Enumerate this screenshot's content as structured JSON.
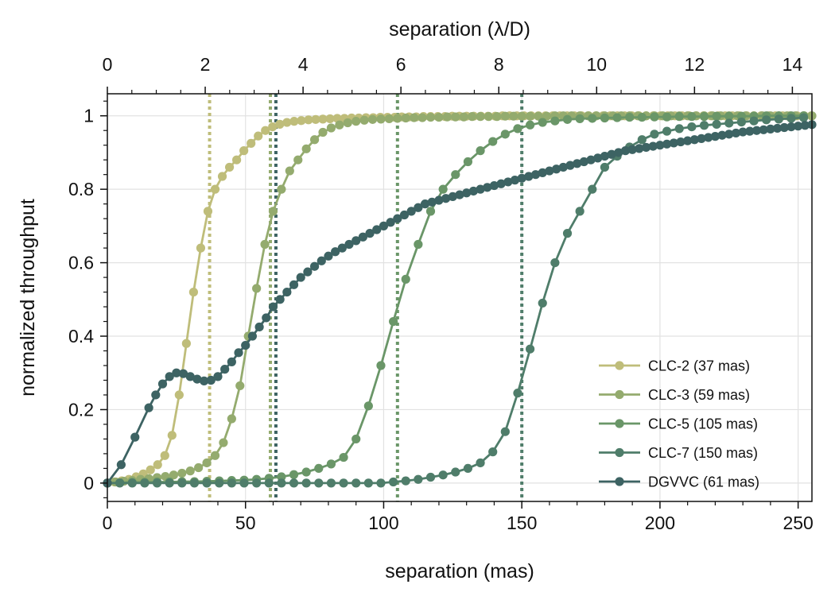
{
  "chart_data": {
    "type": "line",
    "xlabel": "separation (mas)",
    "ylabel": "normalized throughput",
    "top_xlabel": "separation (λ/D)",
    "xlim": [
      0,
      255
    ],
    "ylim": [
      -0.05,
      1.06
    ],
    "top_xlim": [
      0,
      14.4
    ],
    "x_ticks": [
      0,
      50,
      100,
      150,
      200,
      250
    ],
    "x_tick_labels": [
      "0",
      "50",
      "100",
      "150",
      "200",
      "250"
    ],
    "y_ticks": [
      0,
      0.2,
      0.4,
      0.6,
      0.8,
      1
    ],
    "y_tick_labels": [
      "0",
      "0.2",
      "0.4",
      "0.6",
      "0.8",
      "1"
    ],
    "top_x_ticks": [
      0,
      2,
      4,
      6,
      8,
      10,
      12,
      14
    ],
    "top_x_tick_labels": [
      "0",
      "2",
      "4",
      "6",
      "8",
      "10",
      "12",
      "14"
    ],
    "grid": true,
    "legend_position": "bottom-right",
    "series": [
      {
        "name": "CLC-2 (37 mas)",
        "color": "#bfbd7a",
        "iwa": 37
      },
      {
        "name": "CLC-3 (59 mas)",
        "color": "#94ab6e",
        "iwa": 59
      },
      {
        "name": "CLC-5 (105 mas)",
        "color": "#6a9668",
        "iwa": 105
      },
      {
        "name": "CLC-7 (150 mas)",
        "color": "#4f7d6a",
        "iwa": 150
      },
      {
        "name": "DGVVC (61 mas)",
        "color": "#3d6363",
        "iwa": 61
      }
    ],
    "curves": [
      {
        "x": [
          0,
          2.6,
          5.2,
          7.8,
          10.4,
          13,
          15.6,
          18.2,
          20.8,
          23.4,
          26,
          28.6,
          31.2,
          33.8,
          36.4,
          39,
          41.6,
          44.2,
          46.8,
          49.4,
          52,
          54.6,
          57.2,
          59.8,
          62.4,
          65,
          67.6,
          70.2,
          72.8,
          75.4,
          78,
          80.6,
          83.2,
          85.8,
          88.4,
          91,
          93.6,
          96.2,
          98.8,
          101.4,
          104,
          106.6,
          109.2,
          111.8,
          114.4,
          117,
          119.6,
          122.2,
          124.8,
          127.4,
          130,
          132.6,
          135.2,
          137.8,
          140.4,
          143,
          145.6,
          148.2,
          150.8,
          153.4,
          156,
          158.6,
          161.2,
          163.8,
          166.4,
          169,
          171.6,
          174.2,
          176.8,
          179.4,
          182,
          184.6,
          187.2,
          189.8,
          192.4,
          195,
          197.6,
          200.2,
          202.8,
          205.4,
          208,
          210.6,
          213.2,
          215.8,
          218.4,
          221,
          223.6,
          226.2,
          228.8,
          231.4,
          234,
          236.6,
          239.2,
          241.8,
          244.4,
          247,
          249.6,
          252.2,
          254.8
        ],
        "y": [
          0,
          0.003,
          0.006,
          0.01,
          0.017,
          0.025,
          0.036,
          0.05,
          0.075,
          0.13,
          0.24,
          0.38,
          0.52,
          0.64,
          0.74,
          0.8,
          0.835,
          0.86,
          0.88,
          0.905,
          0.925,
          0.945,
          0.96,
          0.97,
          0.977,
          0.982,
          0.985,
          0.987,
          0.989,
          0.99,
          0.991,
          0.992,
          0.993,
          0.993,
          0.994,
          0.994,
          0.995,
          0.995,
          0.996,
          0.996,
          0.996,
          0.997,
          0.997,
          0.997,
          0.998,
          0.998,
          0.998,
          0.998,
          0.999,
          0.999,
          0.999,
          0.999,
          0.999,
          0.999,
          0.999,
          1,
          1,
          1,
          1,
          1,
          1,
          1,
          1,
          1,
          1,
          1,
          1,
          1,
          1,
          1,
          1,
          1,
          1,
          1,
          1,
          1,
          1,
          1,
          1,
          1,
          1,
          1,
          1,
          1,
          1,
          1,
          1,
          1,
          1,
          1,
          1,
          1,
          1,
          1,
          1,
          1,
          1,
          1,
          1
        ]
      },
      {
        "x": [
          0,
          3,
          6,
          9,
          12,
          15,
          18,
          21,
          24,
          27,
          30,
          33,
          36,
          39,
          42,
          45,
          48,
          51,
          54,
          57,
          60,
          63,
          66,
          69,
          72,
          75,
          78,
          81,
          84,
          87,
          90,
          93,
          96,
          99,
          102,
          105,
          108,
          111,
          114,
          117,
          120,
          123,
          126,
          129,
          132,
          135,
          138,
          141,
          144,
          147,
          150,
          153,
          156,
          159,
          162,
          165,
          168,
          171,
          174,
          177,
          180,
          183,
          186,
          189,
          192,
          195,
          198,
          201,
          204,
          207,
          210,
          213,
          216,
          219,
          222,
          225,
          228,
          231,
          234,
          237,
          240,
          243,
          246,
          249,
          252,
          255
        ],
        "y": [
          0,
          0.003,
          0.005,
          0.007,
          0.01,
          0.012,
          0.015,
          0.018,
          0.022,
          0.027,
          0.033,
          0.042,
          0.055,
          0.075,
          0.11,
          0.175,
          0.265,
          0.4,
          0.53,
          0.65,
          0.74,
          0.8,
          0.85,
          0.88,
          0.91,
          0.935,
          0.955,
          0.967,
          0.975,
          0.981,
          0.985,
          0.988,
          0.99,
          0.991,
          0.992,
          0.993,
          0.994,
          0.995,
          0.995,
          0.996,
          0.996,
          0.997,
          0.997,
          0.997,
          0.998,
          0.998,
          0.998,
          0.998,
          0.999,
          0.999,
          0.999,
          0.999,
          0.999,
          0.999,
          1,
          1,
          1,
          1,
          1,
          1,
          1,
          1,
          1,
          1,
          1,
          1,
          1,
          1,
          1,
          1,
          1,
          1,
          1,
          1,
          1,
          1,
          1,
          1,
          1,
          1,
          1,
          1,
          1,
          1,
          1,
          1
        ]
      },
      {
        "x": [
          0,
          4.5,
          9,
          13.5,
          18,
          22.5,
          27,
          31.5,
          36,
          40.5,
          45,
          49.5,
          54,
          58.5,
          63,
          67.5,
          72,
          76.5,
          81,
          85.5,
          90,
          94.5,
          99,
          103.5,
          108,
          112.5,
          117,
          121.5,
          126,
          130.5,
          135,
          139.5,
          144,
          148.5,
          153,
          157.5,
          162,
          166.5,
          171,
          175.5,
          180,
          184.5,
          189,
          193.5,
          198,
          202.5,
          207,
          211.5,
          216,
          220.5,
          225,
          229.5,
          234,
          238.5,
          243,
          247.5,
          252
        ],
        "y": [
          0,
          0.001,
          0.002,
          0.002,
          0.003,
          0.003,
          0.004,
          0.004,
          0.005,
          0.006,
          0.007,
          0.008,
          0.01,
          0.013,
          0.017,
          0.023,
          0.03,
          0.04,
          0.052,
          0.07,
          0.12,
          0.21,
          0.32,
          0.44,
          0.555,
          0.65,
          0.74,
          0.8,
          0.84,
          0.875,
          0.905,
          0.93,
          0.95,
          0.965,
          0.975,
          0.982,
          0.986,
          0.99,
          0.992,
          0.993,
          0.994,
          0.995,
          0.996,
          0.996,
          0.997,
          0.997,
          0.998,
          0.998,
          0.998,
          0.999,
          0.999,
          0.999,
          0.999,
          1,
          1,
          1,
          1
        ]
      },
      {
        "x": [
          0,
          4.5,
          9,
          13.5,
          18,
          22.5,
          27,
          31.5,
          36,
          40.5,
          45,
          49.5,
          54,
          58.5,
          63,
          67.5,
          72,
          76.5,
          81,
          85.5,
          90,
          94.5,
          99,
          103.5,
          108,
          112.5,
          117,
          121.5,
          126,
          130.5,
          135,
          139.5,
          144,
          148.5,
          153,
          157.5,
          162,
          166.5,
          171,
          175.5,
          180,
          184.5,
          189,
          193.5,
          198,
          202.5,
          207,
          211.5,
          216,
          220.5,
          225,
          229.5,
          234,
          238.5,
          243,
          247.5,
          252
        ],
        "y": [
          0,
          0,
          0,
          0,
          0,
          0,
          0,
          0,
          0,
          0,
          0,
          0,
          0,
          0,
          0,
          0,
          0,
          0,
          0,
          0,
          0,
          0,
          0,
          0.003,
          0.006,
          0.01,
          0.016,
          0.022,
          0.03,
          0.04,
          0.055,
          0.085,
          0.14,
          0.245,
          0.365,
          0.49,
          0.6,
          0.68,
          0.74,
          0.8,
          0.86,
          0.89,
          0.915,
          0.935,
          0.95,
          0.958,
          0.965,
          0.97,
          0.974,
          0.977,
          0.98,
          0.983,
          0.986,
          0.989,
          0.991,
          0.993,
          0.995
        ]
      },
      {
        "x": [
          0,
          5,
          10,
          15,
          17.5,
          20,
          22.5,
          25,
          27.5,
          30,
          32.5,
          35,
          37.5,
          40,
          42.5,
          45,
          47.5,
          50,
          52.5,
          55,
          57.5,
          60,
          62.5,
          65,
          67.5,
          70,
          72.5,
          75,
          77.5,
          80,
          82.5,
          85,
          87.5,
          90,
          92.5,
          95,
          97.5,
          100,
          102.5,
          105,
          107.5,
          110,
          112.5,
          115,
          117.5,
          120,
          122.5,
          125,
          127.5,
          130,
          132.5,
          135,
          137.5,
          140,
          142.5,
          145,
          147.5,
          150,
          152.5,
          155,
          157.5,
          160,
          162.5,
          165,
          167.5,
          170,
          172.5,
          175,
          177.5,
          180,
          182.5,
          185,
          187.5,
          190,
          192.5,
          195,
          197.5,
          200,
          202.5,
          205,
          207.5,
          210,
          212.5,
          215,
          217.5,
          220,
          222.5,
          225,
          227.5,
          230,
          232.5,
          235,
          237.5,
          240,
          242.5,
          245,
          247.5,
          250,
          252.5,
          255
        ],
        "y": [
          0,
          0.05,
          0.125,
          0.205,
          0.24,
          0.27,
          0.29,
          0.3,
          0.298,
          0.29,
          0.283,
          0.278,
          0.28,
          0.29,
          0.31,
          0.33,
          0.355,
          0.375,
          0.4,
          0.425,
          0.45,
          0.48,
          0.5,
          0.52,
          0.54,
          0.56,
          0.575,
          0.59,
          0.605,
          0.618,
          0.63,
          0.64,
          0.65,
          0.66,
          0.67,
          0.68,
          0.69,
          0.7,
          0.71,
          0.72,
          0.73,
          0.74,
          0.75,
          0.76,
          0.765,
          0.77,
          0.775,
          0.78,
          0.785,
          0.79,
          0.795,
          0.8,
          0.805,
          0.81,
          0.815,
          0.82,
          0.825,
          0.83,
          0.835,
          0.84,
          0.845,
          0.85,
          0.855,
          0.86,
          0.865,
          0.87,
          0.875,
          0.88,
          0.885,
          0.89,
          0.895,
          0.9,
          0.905,
          0.908,
          0.911,
          0.914,
          0.917,
          0.92,
          0.923,
          0.926,
          0.929,
          0.932,
          0.935,
          0.938,
          0.941,
          0.944,
          0.947,
          0.95,
          0.953,
          0.956,
          0.958,
          0.96,
          0.962,
          0.964,
          0.966,
          0.968,
          0.97,
          0.972,
          0.974,
          0.976
        ]
      }
    ]
  }
}
